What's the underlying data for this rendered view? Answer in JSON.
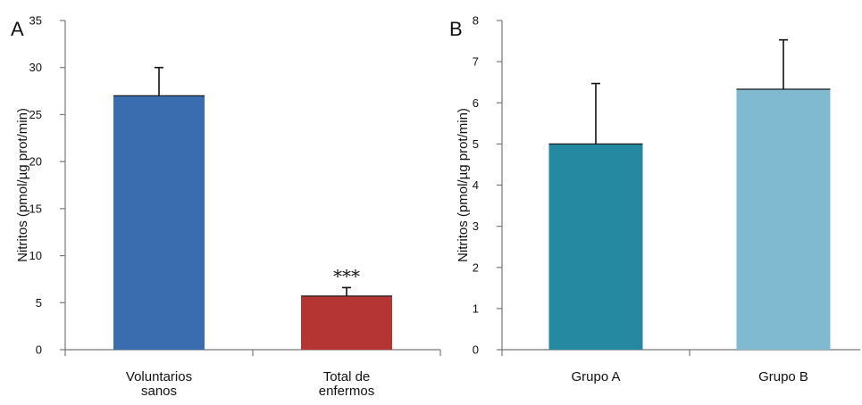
{
  "chart_data": [
    {
      "type": "bar",
      "panel_label": "A",
      "categories": [
        [
          "Voluntarios",
          "sanos"
        ],
        [
          "Total de",
          "enfermos"
        ]
      ],
      "values": [
        27,
        5.7
      ],
      "errors": [
        3.0,
        0.9
      ],
      "colors": [
        "#3a6cb0",
        "#b53535"
      ],
      "annotations": [
        "",
        "***"
      ],
      "ylabel": "Nitritos (pmol/µg prot/min)",
      "ylim": [
        0,
        35
      ],
      "yticks": [
        0,
        5,
        10,
        15,
        20,
        25,
        30,
        35
      ],
      "grid": false,
      "legend": "none"
    },
    {
      "type": "bar",
      "panel_label": "B",
      "categories": [
        [
          "Grupo A"
        ],
        [
          "Grupo B"
        ]
      ],
      "values": [
        5.0,
        6.33
      ],
      "errors": [
        1.47,
        1.2
      ],
      "colors": [
        "#2589a2",
        "#7fbad1"
      ],
      "annotations": [
        "",
        ""
      ],
      "ylabel": "Nitritos (pmol/µg prot/min)",
      "ylim": [
        0,
        8
      ],
      "yticks": [
        0,
        1,
        2,
        3,
        4,
        5,
        6,
        7,
        8
      ],
      "grid": false,
      "legend": "none"
    }
  ]
}
